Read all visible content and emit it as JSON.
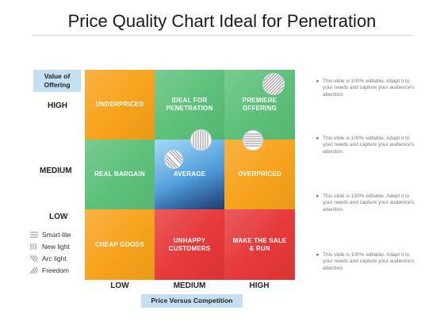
{
  "title": "Price Quality Chart Ideal for Penetration",
  "y_axis": {
    "label": "Value of Offering",
    "ticks": {
      "high": "HIGH",
      "medium": "MEDIUM",
      "low": "LOW"
    }
  },
  "x_axis": {
    "label": "Price Versus Competition",
    "ticks": {
      "low": "LOW",
      "medium": "MEDIUM",
      "high": "HIGH"
    }
  },
  "cells": {
    "top_left": "UNDERPRICED",
    "top_middle": "IDEAL FOR PENETRATION",
    "top_right": "PREMIERE OFFERING",
    "mid_left": "REAL BARGAIN",
    "mid_middle": "AVERAGE",
    "mid_right": "OVERPRICED",
    "bottom_left": "CHEAP GOODS",
    "bottom_middle": "UNHAPPY CUSTOMERS",
    "bottom_right": "MAKE THE SALE & RUN"
  },
  "colors": {
    "orange": "#f7a21b",
    "green": "#5cc07a",
    "blue": "#4e9bdc",
    "red": "#e6383a",
    "label_box": "#c5dff3"
  },
  "legend": [
    {
      "label": "Smart-lite",
      "icon": "horizontal-lines-icon"
    },
    {
      "label": "New light",
      "icon": "vertical-lines-icon"
    },
    {
      "label": "Arc light",
      "icon": "backslash-lines-icon"
    },
    {
      "label": "Freedom",
      "icon": "slash-lines-icon"
    }
  ],
  "notes": [
    "This slide is 100% editable. Adapt it to your needs and capture your audience's attention.",
    "This slide is 100% editable. Adapt it to your needs and capture your audience's attention.",
    "This slide is 100% editable. Adapt it to your needs and capture your audience's attention.",
    "This slide is 100% editable. Adapt it to your needs and capture your audience's attention."
  ]
}
